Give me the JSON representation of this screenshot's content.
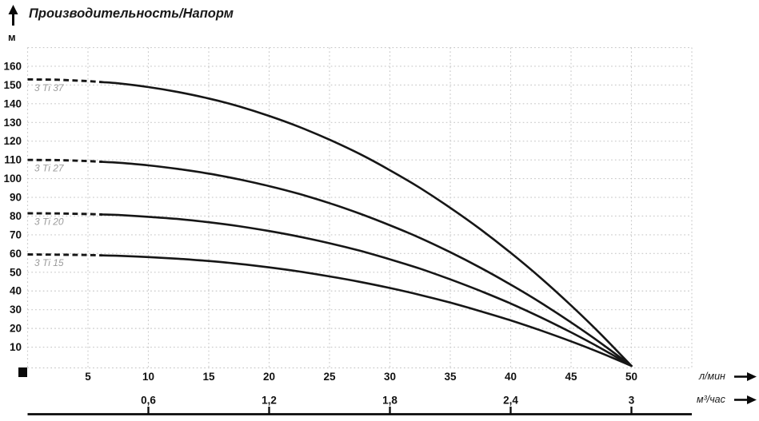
{
  "header": {
    "title": "Производительность/Напорм"
  },
  "icons": {
    "up_arrow": "y-axis-direction-arrow",
    "right_arrow_primary": "x-axis-primary-direction-arrow",
    "right_arrow_secondary": "x-axis-secondary-direction-arrow"
  },
  "chart_data": {
    "type": "line",
    "title": "Производительность/Напорм",
    "ylabel": "м",
    "xlabel_primary": "л/мин",
    "xlabel_secondary": "м³/час",
    "grid": true,
    "legend_position": "labels-on-curves-left",
    "x_range_lmin": [
      0,
      55
    ],
    "y_range_m": [
      0,
      170
    ],
    "x_ticks_lmin": [
      5,
      10,
      15,
      20,
      25,
      30,
      35,
      40,
      45,
      50
    ],
    "y_ticks_m": [
      10,
      20,
      30,
      40,
      50,
      60,
      70,
      80,
      90,
      100,
      110,
      120,
      130,
      140,
      150,
      160
    ],
    "secondary_x_ticks": [
      {
        "label": "0,6",
        "lmin": 10
      },
      {
        "label": "1,2",
        "lmin": 20
      },
      {
        "label": "1,8",
        "lmin": 30
      },
      {
        "label": "2,4",
        "lmin": 40
      },
      {
        "label": "3",
        "lmin": 50
      }
    ],
    "dashed_segment_end_lmin": 6.2,
    "x_samples_lmin": [
      0,
      2.5,
      5,
      7.5,
      10,
      12.5,
      15,
      17.5,
      20,
      22.5,
      25,
      27.5,
      30,
      32.5,
      35,
      37.5,
      40,
      42.5,
      45,
      47.5,
      50
    ],
    "series": [
      {
        "name": "3 Ti 37",
        "shutoff_head_m": 153,
        "head_m": [
          153.0,
          152.8,
          152.1,
          150.9,
          148.9,
          146.2,
          142.8,
          138.6,
          133.5,
          127.6,
          120.8,
          113.2,
          104.5,
          95.0,
          84.4,
          72.9,
          60.4,
          46.9,
          32.3,
          16.7,
          0
        ]
      },
      {
        "name": "3 Ti 27",
        "shutoff_head_m": 110,
        "head_m": [
          110.0,
          109.9,
          109.4,
          108.5,
          107.1,
          105.1,
          102.7,
          99.6,
          96.0,
          91.8,
          86.9,
          81.3,
          75.1,
          68.3,
          60.7,
          52.4,
          43.4,
          33.7,
          23.2,
          12.0,
          0
        ]
      },
      {
        "name": "3 Ti 20",
        "shutoff_head_m": 81.5,
        "head_m": [
          81.5,
          81.4,
          81.1,
          80.6,
          79.6,
          78.4,
          76.7,
          74.6,
          72.0,
          69.0,
          65.5,
          61.5,
          56.9,
          51.9,
          46.2,
          40.0,
          33.3,
          25.9,
          17.9,
          9.3,
          0
        ]
      },
      {
        "name": "3 Ti 15",
        "shutoff_head_m": 59.5,
        "head_m": [
          59.5,
          59.4,
          59.2,
          58.8,
          58.1,
          57.2,
          56.0,
          54.5,
          52.6,
          50.4,
          47.8,
          44.9,
          41.6,
          37.9,
          33.8,
          29.2,
          24.3,
          18.9,
          13.1,
          6.8,
          0
        ]
      }
    ],
    "colors": {
      "curve": "#161616",
      "grid": "#c9c9c9",
      "curve_label": "#9b9b9b",
      "text": "#111111",
      "axis_line": "#0a0a0a"
    }
  }
}
